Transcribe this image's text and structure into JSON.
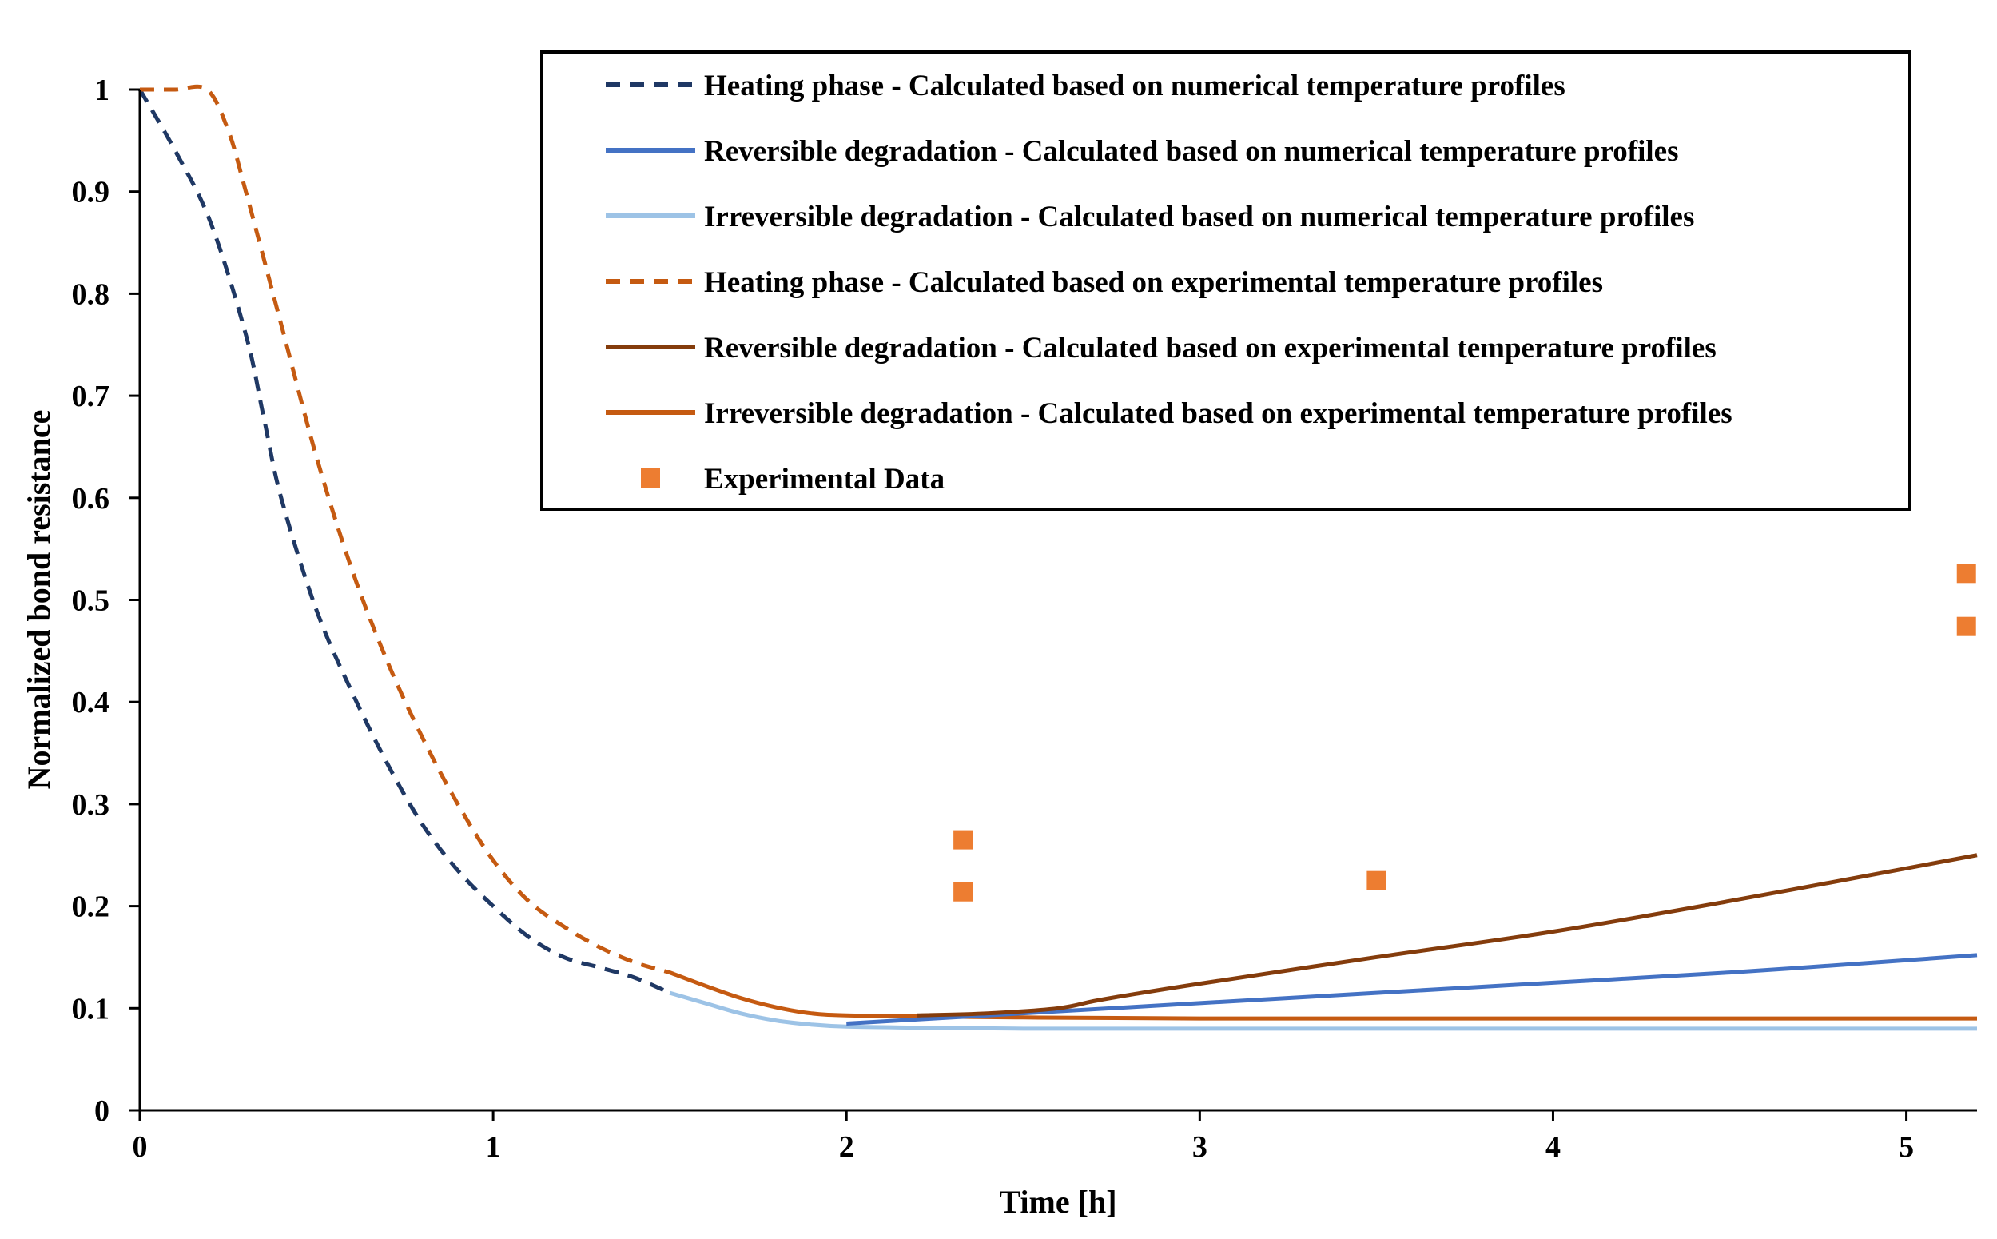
{
  "chart_data": {
    "type": "line",
    "title": "",
    "xlabel": "Time [h]",
    "ylabel": "Normalized bond resistance",
    "xlim": [
      0,
      5.2
    ],
    "ylim": [
      0,
      1
    ],
    "xticks": [
      0,
      1,
      2,
      3,
      4,
      5
    ],
    "yticks": [
      0,
      0.1,
      0.2,
      0.3,
      0.4,
      0.5,
      0.6,
      0.7,
      0.8,
      0.9,
      1
    ],
    "xtick_labels": [
      "0",
      "1",
      "2",
      "3",
      "4",
      "5"
    ],
    "ytick_labels": [
      "0",
      "0.1",
      "0.2",
      "0.3",
      "0.4",
      "0.5",
      "0.6",
      "0.7",
      "0.8",
      "0.9",
      "1"
    ],
    "grid": false,
    "legend_position": "top-right",
    "series": [
      {
        "name": "Heating phase - Calculated based on numerical temperature profiles",
        "color": "#1f3864",
        "style": "dashed",
        "x": [
          0,
          0.1,
          0.2,
          0.3,
          0.35,
          0.4,
          0.5,
          0.6,
          0.7,
          0.8,
          0.9,
          1.0,
          1.1,
          1.2,
          1.3,
          1.4,
          1.5
        ],
        "y": [
          1.0,
          0.94,
          0.87,
          0.76,
          0.68,
          0.6,
          0.49,
          0.41,
          0.34,
          0.28,
          0.235,
          0.2,
          0.17,
          0.15,
          0.14,
          0.13,
          0.115
        ]
      },
      {
        "name": "Reversible degradation - Calculated based on numerical temperature profiles",
        "color": "#4472c4",
        "style": "solid",
        "x": [
          2.0,
          2.5,
          3.0,
          3.5,
          4.0,
          4.5,
          5.0,
          5.2
        ],
        "y": [
          0.085,
          0.095,
          0.105,
          0.115,
          0.125,
          0.135,
          0.147,
          0.152
        ]
      },
      {
        "name": "Irreversible degradation - Calculated based on numerical temperature profiles",
        "color": "#9dc3e6",
        "style": "solid",
        "x": [
          1.5,
          1.6,
          1.7,
          1.8,
          1.9,
          2.0,
          2.2,
          2.5,
          3.0,
          4.0,
          5.0,
          5.2
        ],
        "y": [
          0.115,
          0.105,
          0.095,
          0.088,
          0.084,
          0.082,
          0.081,
          0.08,
          0.08,
          0.08,
          0.08,
          0.08
        ]
      },
      {
        "name": "Heating phase - Calculated based on experimental temperature profiles",
        "color": "#c55a11",
        "style": "dashed",
        "x": [
          0,
          0.1,
          0.19,
          0.25,
          0.3,
          0.4,
          0.5,
          0.6,
          0.7,
          0.8,
          0.9,
          1.0,
          1.1,
          1.2,
          1.3,
          1.4,
          1.5
        ],
        "y": [
          1.0,
          1.0,
          1.0,
          0.96,
          0.9,
          0.77,
          0.64,
          0.53,
          0.44,
          0.365,
          0.3,
          0.245,
          0.205,
          0.18,
          0.16,
          0.145,
          0.135
        ]
      },
      {
        "name": "Reversible degradation - Calculated based on experimental temperature profiles",
        "color": "#843c0c",
        "style": "solid",
        "x": [
          2.2,
          2.4,
          2.6,
          2.7,
          2.8,
          3.0,
          3.5,
          4.0,
          4.5,
          5.0,
          5.2
        ],
        "y": [
          0.093,
          0.095,
          0.1,
          0.107,
          0.113,
          0.124,
          0.15,
          0.175,
          0.205,
          0.237,
          0.25
        ]
      },
      {
        "name": "Irreversible degradation - Calculated based on experimental temperature profiles",
        "color": "#c55a11",
        "style": "solid",
        "x": [
          1.5,
          1.6,
          1.7,
          1.8,
          1.9,
          2.0,
          2.2,
          2.5,
          3.0,
          4.0,
          5.0,
          5.2
        ],
        "y": [
          0.135,
          0.122,
          0.11,
          0.101,
          0.095,
          0.093,
          0.092,
          0.091,
          0.09,
          0.09,
          0.09,
          0.09
        ]
      }
    ],
    "scatter": {
      "name": "Experimental Data",
      "color": "#ed7d31",
      "x": [
        2.33,
        2.33,
        3.5,
        5.17,
        5.17
      ],
      "y": [
        0.265,
        0.214,
        0.225,
        0.526,
        0.474
      ]
    }
  }
}
